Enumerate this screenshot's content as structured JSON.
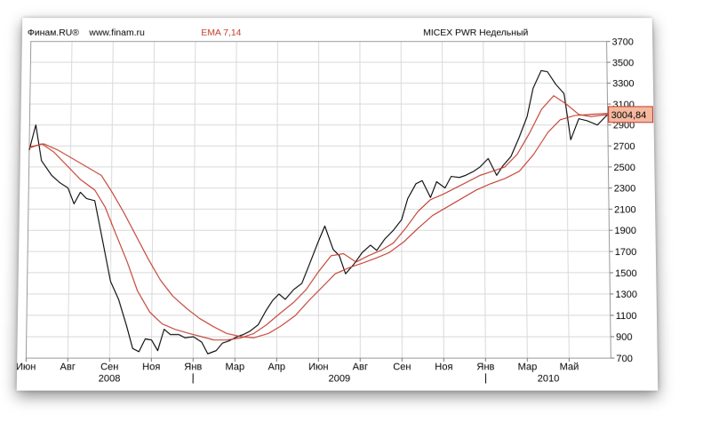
{
  "header": {
    "brand": "Финам.RU®",
    "site": "www.finam.ru",
    "indicator": "EMA 7,14",
    "instrument": "MICEX PWR Недельный"
  },
  "colors": {
    "price": "#000000",
    "ema_fast": "#c0392b",
    "ema_slow": "#c0392b",
    "grid": "#d9d9d9",
    "last_badge_bg": "#f5b9a0",
    "last_badge_border": "#c0392b"
  },
  "last_value": "3004,84",
  "chart_data": {
    "type": "line",
    "title": "",
    "xlabel": "",
    "ylabel": "",
    "ylim": [
      700,
      3700
    ],
    "yticks": [
      700,
      900,
      1100,
      1300,
      1500,
      1700,
      1900,
      2100,
      2300,
      2500,
      2700,
      2900,
      3100,
      3300,
      3500,
      3700
    ],
    "xlim": [
      0,
      28
    ],
    "xticks": [
      {
        "x": 0,
        "label": "Июн"
      },
      {
        "x": 2,
        "label": "Авг"
      },
      {
        "x": 4,
        "label": "Сен"
      },
      {
        "x": 6,
        "label": "Ноя"
      },
      {
        "x": 8,
        "label": "Янв"
      },
      {
        "x": 10,
        "label": "Мар"
      },
      {
        "x": 12,
        "label": "Апр"
      },
      {
        "x": 14,
        "label": "Июн"
      },
      {
        "x": 16,
        "label": "Авг"
      },
      {
        "x": 18,
        "label": "Сен"
      },
      {
        "x": 20,
        "label": "Ноя"
      },
      {
        "x": 22,
        "label": "Янв"
      },
      {
        "x": 24,
        "label": "Мар"
      },
      {
        "x": 26,
        "label": "Май"
      }
    ],
    "years": [
      {
        "x": 4,
        "label": "2008"
      },
      {
        "x": 15,
        "label": "2009"
      },
      {
        "x": 25,
        "label": "2010"
      }
    ],
    "year_separators": [
      8,
      22
    ],
    "grid": true,
    "series": [
      {
        "name": "MICEX PWR",
        "values": [
          [
            0.0,
            2660
          ],
          [
            0.3,
            2900
          ],
          [
            0.6,
            2560
          ],
          [
            1.1,
            2420
          ],
          [
            1.5,
            2350
          ],
          [
            1.9,
            2300
          ],
          [
            2.2,
            2150
          ],
          [
            2.5,
            2260
          ],
          [
            2.8,
            2200
          ],
          [
            3.2,
            2180
          ],
          [
            3.6,
            1800
          ],
          [
            4.0,
            1420
          ],
          [
            4.4,
            1250
          ],
          [
            4.8,
            1000
          ],
          [
            5.1,
            790
          ],
          [
            5.4,
            760
          ],
          [
            5.7,
            880
          ],
          [
            6.0,
            870
          ],
          [
            6.3,
            770
          ],
          [
            6.6,
            970
          ],
          [
            6.9,
            920
          ],
          [
            7.3,
            920
          ],
          [
            7.6,
            890
          ],
          [
            8.0,
            900
          ],
          [
            8.4,
            850
          ],
          [
            8.7,
            740
          ],
          [
            9.1,
            770
          ],
          [
            9.4,
            840
          ],
          [
            9.7,
            860
          ],
          [
            10.1,
            900
          ],
          [
            10.4,
            920
          ],
          [
            10.7,
            950
          ],
          [
            11.1,
            1010
          ],
          [
            11.5,
            1150
          ],
          [
            11.8,
            1240
          ],
          [
            12.1,
            1300
          ],
          [
            12.4,
            1250
          ],
          [
            12.8,
            1340
          ],
          [
            13.2,
            1400
          ],
          [
            13.6,
            1600
          ],
          [
            14.0,
            1800
          ],
          [
            14.3,
            1940
          ],
          [
            14.7,
            1720
          ],
          [
            15.0,
            1660
          ],
          [
            15.3,
            1490
          ],
          [
            15.7,
            1580
          ],
          [
            16.1,
            1690
          ],
          [
            16.5,
            1760
          ],
          [
            16.8,
            1710
          ],
          [
            17.2,
            1820
          ],
          [
            17.6,
            1900
          ],
          [
            18.0,
            2000
          ],
          [
            18.3,
            2200
          ],
          [
            18.7,
            2340
          ],
          [
            19.0,
            2370
          ],
          [
            19.4,
            2210
          ],
          [
            19.7,
            2360
          ],
          [
            20.1,
            2300
          ],
          [
            20.4,
            2410
          ],
          [
            20.8,
            2400
          ],
          [
            21.1,
            2420
          ],
          [
            21.5,
            2460
          ],
          [
            21.8,
            2500
          ],
          [
            22.2,
            2580
          ],
          [
            22.6,
            2420
          ],
          [
            22.9,
            2510
          ],
          [
            23.3,
            2600
          ],
          [
            23.7,
            2780
          ],
          [
            24.1,
            2980
          ],
          [
            24.4,
            3250
          ],
          [
            24.8,
            3420
          ],
          [
            25.1,
            3410
          ],
          [
            25.5,
            3290
          ],
          [
            25.9,
            3200
          ],
          [
            26.2,
            2760
          ],
          [
            26.6,
            2960
          ],
          [
            27.0,
            2940
          ],
          [
            27.5,
            2900
          ],
          [
            28.0,
            3000
          ]
        ]
      },
      {
        "name": "EMA 7",
        "values": [
          [
            0.0,
            2680
          ],
          [
            0.6,
            2720
          ],
          [
            1.2,
            2640
          ],
          [
            1.9,
            2500
          ],
          [
            2.5,
            2380
          ],
          [
            3.2,
            2280
          ],
          [
            3.7,
            2120
          ],
          [
            4.2,
            1880
          ],
          [
            4.8,
            1600
          ],
          [
            5.3,
            1330
          ],
          [
            5.9,
            1130
          ],
          [
            6.5,
            1020
          ],
          [
            7.1,
            970
          ],
          [
            7.8,
            930
          ],
          [
            8.4,
            900
          ],
          [
            9.0,
            870
          ],
          [
            9.6,
            870
          ],
          [
            10.3,
            890
          ],
          [
            10.9,
            930
          ],
          [
            11.5,
            1010
          ],
          [
            12.1,
            1110
          ],
          [
            12.8,
            1220
          ],
          [
            13.4,
            1340
          ],
          [
            14.0,
            1510
          ],
          [
            14.6,
            1660
          ],
          [
            15.2,
            1680
          ],
          [
            15.8,
            1600
          ],
          [
            16.4,
            1660
          ],
          [
            17.0,
            1710
          ],
          [
            17.6,
            1780
          ],
          [
            18.2,
            1920
          ],
          [
            18.8,
            2080
          ],
          [
            19.4,
            2190
          ],
          [
            20.0,
            2240
          ],
          [
            20.6,
            2300
          ],
          [
            21.2,
            2360
          ],
          [
            21.8,
            2420
          ],
          [
            22.4,
            2460
          ],
          [
            23.0,
            2500
          ],
          [
            23.6,
            2620
          ],
          [
            24.2,
            2820
          ],
          [
            24.8,
            3050
          ],
          [
            25.4,
            3180
          ],
          [
            26.0,
            3100
          ],
          [
            26.6,
            3000
          ],
          [
            27.2,
            2980
          ],
          [
            28.0,
            3000
          ]
        ]
      },
      {
        "name": "EMA 14",
        "values": [
          [
            0.0,
            2690
          ],
          [
            0.7,
            2720
          ],
          [
            1.4,
            2660
          ],
          [
            2.1,
            2580
          ],
          [
            2.8,
            2500
          ],
          [
            3.5,
            2420
          ],
          [
            4.0,
            2270
          ],
          [
            4.6,
            2070
          ],
          [
            5.2,
            1850
          ],
          [
            5.8,
            1630
          ],
          [
            6.4,
            1430
          ],
          [
            7.0,
            1280
          ],
          [
            7.7,
            1160
          ],
          [
            8.3,
            1070
          ],
          [
            9.0,
            990
          ],
          [
            9.6,
            930
          ],
          [
            10.3,
            900
          ],
          [
            10.9,
            890
          ],
          [
            11.6,
            930
          ],
          [
            12.2,
            1000
          ],
          [
            12.9,
            1100
          ],
          [
            13.5,
            1230
          ],
          [
            14.2,
            1370
          ],
          [
            14.8,
            1490
          ],
          [
            15.5,
            1550
          ],
          [
            16.1,
            1590
          ],
          [
            16.8,
            1640
          ],
          [
            17.4,
            1690
          ],
          [
            18.1,
            1790
          ],
          [
            18.8,
            1920
          ],
          [
            19.5,
            2040
          ],
          [
            20.2,
            2120
          ],
          [
            20.9,
            2200
          ],
          [
            21.6,
            2280
          ],
          [
            22.3,
            2340
          ],
          [
            23.0,
            2390
          ],
          [
            23.7,
            2460
          ],
          [
            24.4,
            2620
          ],
          [
            25.1,
            2830
          ],
          [
            25.7,
            2950
          ],
          [
            26.4,
            2990
          ],
          [
            27.1,
            3000
          ],
          [
            28.0,
            3010
          ]
        ]
      }
    ]
  }
}
